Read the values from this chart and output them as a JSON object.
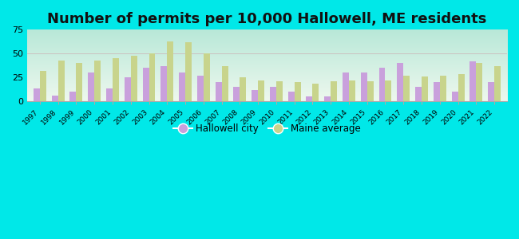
{
  "title": "Number of permits per 10,000 Hallowell, ME residents",
  "years": [
    1997,
    1998,
    1999,
    2000,
    2001,
    2002,
    2003,
    2004,
    2005,
    2006,
    2007,
    2008,
    2009,
    2010,
    2011,
    2012,
    2013,
    2014,
    2015,
    2016,
    2017,
    2018,
    2019,
    2020,
    2021,
    2022
  ],
  "hallowell": [
    13,
    6,
    10,
    30,
    13,
    25,
    35,
    37,
    30,
    27,
    20,
    15,
    12,
    15,
    10,
    5,
    5,
    30,
    30,
    35,
    40,
    15,
    20,
    10,
    42,
    20
  ],
  "maine_avg": [
    32,
    43,
    40,
    43,
    45,
    48,
    50,
    63,
    62,
    50,
    37,
    25,
    22,
    21,
    20,
    18,
    21,
    22,
    21,
    22,
    27,
    26,
    27,
    28,
    40,
    37
  ],
  "hallowell_color": "#c9a0dc",
  "maine_color": "#c8d48c",
  "background_outer": "#00e8e8",
  "bg_top": "#b8e8d8",
  "bg_bottom": "#eef8ee",
  "ylim": [
    0,
    75
  ],
  "yticks": [
    0,
    25,
    50,
    75
  ],
  "title_fontsize": 13,
  "bar_width": 0.35,
  "legend_hallowell": "Hallowell city",
  "legend_maine": "Maine average"
}
